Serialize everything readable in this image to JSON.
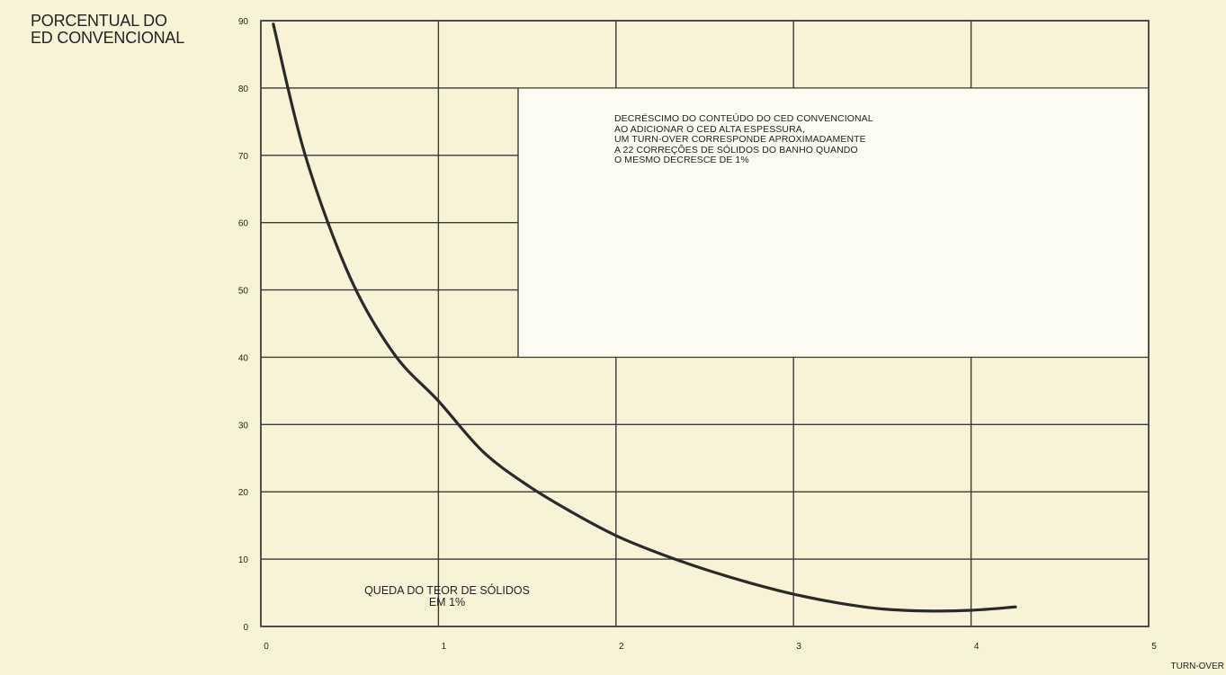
{
  "chart_data": {
    "type": "line",
    "title": "",
    "ylabel": "PORCENTUAL DO\nED CONVENCIONAL",
    "xlabel": "TURN-OVER",
    "xlim": [
      0,
      5
    ],
    "ylim": [
      0,
      90
    ],
    "x_ticks": [
      "0",
      "1",
      "2",
      "3",
      "4",
      "5"
    ],
    "y_ticks": [
      "0",
      "10",
      "20",
      "30",
      "40",
      "50",
      "60",
      "70",
      "80",
      "90"
    ],
    "grid": true,
    "series": [
      {
        "x": [
          0.07,
          0.25,
          0.5,
          0.75,
          1.0,
          1.25,
          1.5,
          1.75,
          2.0,
          2.25,
          2.5,
          2.75,
          3.0,
          3.25,
          3.5,
          3.75,
          4.0,
          4.25
        ],
        "values": [
          89.5,
          70.0,
          52.0,
          40.5,
          33.5,
          26.0,
          21.0,
          17.0,
          13.5,
          10.8,
          8.5,
          6.5,
          4.8,
          3.5,
          2.6,
          2.3,
          2.4,
          2.9
        ]
      }
    ],
    "annotations": [
      {
        "id": "box",
        "text": "DECRÉSCIMO DO CONTEÚDO DO CED CONVENCIONAL\nAO ADICIONAR O CED ALTA ESPESSURA,\nUM TURN-OVER CORRESPONDE APROXIMADAMENTE\nA 22 CORREÇÕES DE SÓLIDOS DO BANHO QUANDO\nO MESMO DECRESCE DE 1%"
      },
      {
        "id": "solidos",
        "text": "QUEDA DO TEOR DE SÓLIDOS\nEM 1%"
      }
    ],
    "colors": {
      "curve": "#2a2a2a",
      "grid": "#3a3a3a",
      "background": "#f8f3d6",
      "box": "#fdfcf2"
    }
  }
}
